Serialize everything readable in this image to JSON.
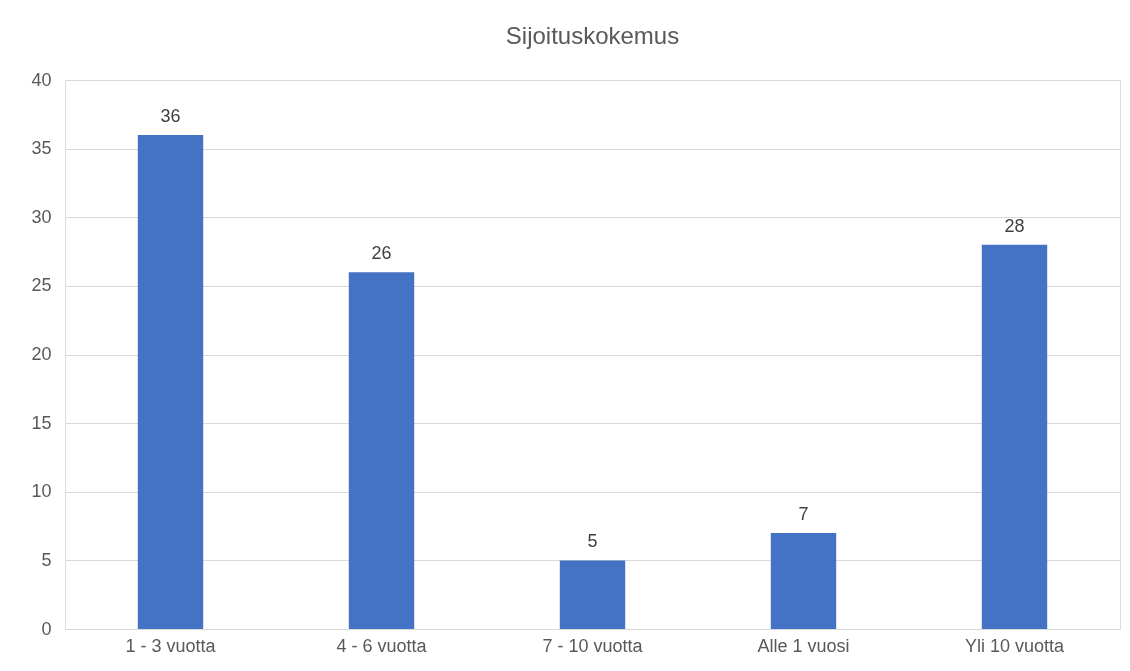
{
  "chart_data": {
    "type": "bar",
    "title": "Sijoituskokemus",
    "categories": [
      "1 - 3 vuotta",
      "4 - 6 vuotta",
      "7 - 10 vuotta",
      "Alle 1 vuosi",
      "Yli 10 vuotta"
    ],
    "values": [
      36,
      26,
      5,
      7,
      28
    ],
    "color": "#4472c4",
    "ylim": [
      0,
      40
    ],
    "yticks": [
      0,
      5,
      10,
      15,
      20,
      25,
      30,
      35,
      40
    ],
    "grid": "y",
    "data_labels": true
  }
}
